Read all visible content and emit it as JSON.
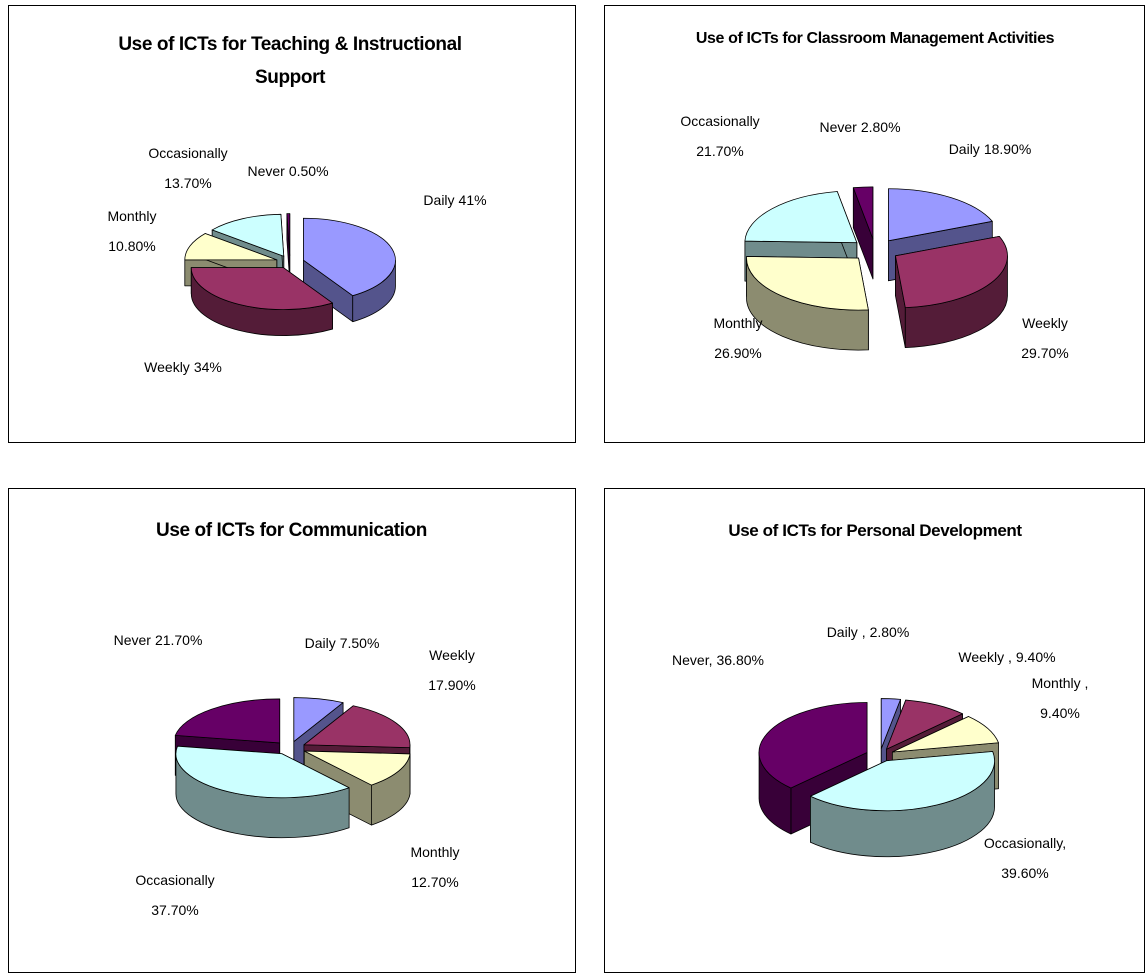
{
  "chart_data": [
    {
      "type": "pie",
      "title": "Use of ICTs for Teaching & Instructional Support",
      "categories": [
        "Daily",
        "Weekly",
        "Monthly",
        "Occasionally",
        "Never"
      ],
      "values": [
        41,
        34,
        10.8,
        13.7,
        0.5
      ],
      "value_labels": [
        "41%",
        "34%",
        "10.80%",
        "13.70%",
        "0.50%"
      ],
      "colors": [
        "#9999ff",
        "#993366",
        "#ffffcc",
        "#ccffff",
        "#660066"
      ]
    },
    {
      "type": "pie",
      "title": "Use of ICTs for Classroom Management Activities",
      "categories": [
        "Daily",
        "Weekly",
        "Monthly",
        "Occasionally",
        "Never"
      ],
      "values": [
        18.9,
        29.7,
        26.9,
        21.7,
        2.8
      ],
      "value_labels": [
        "18.90%",
        "29.70%",
        "26.90%",
        "21.70%",
        "2.80%"
      ],
      "colors": [
        "#9999ff",
        "#993366",
        "#ffffcc",
        "#ccffff",
        "#660066"
      ]
    },
    {
      "type": "pie",
      "title": "Use of ICTs for Communication",
      "categories": [
        "Daily",
        "Weekly",
        "Monthly",
        "Occasionally",
        "Never"
      ],
      "values": [
        7.5,
        17.9,
        12.7,
        37.7,
        21.7
      ],
      "value_labels": [
        "7.50%",
        "17.90%",
        "12.70%",
        "37.70%",
        "21.70%"
      ],
      "colors": [
        "#9999ff",
        "#993366",
        "#ffffcc",
        "#ccffff",
        "#660066"
      ]
    },
    {
      "type": "pie",
      "title": "Use of ICTs for Personal Development",
      "categories": [
        "Daily ,",
        "Weekly ,",
        "Monthly ,",
        "Occasionally,",
        "Never,"
      ],
      "values": [
        2.8,
        9.4,
        9.4,
        39.6,
        36.8
      ],
      "value_labels": [
        "2.80%",
        "9.40%",
        "9.40%",
        "39.60%",
        "36.80%"
      ],
      "colors": [
        "#9999ff",
        "#993366",
        "#ffffcc",
        "#ccffff",
        "#660066"
      ]
    }
  ]
}
